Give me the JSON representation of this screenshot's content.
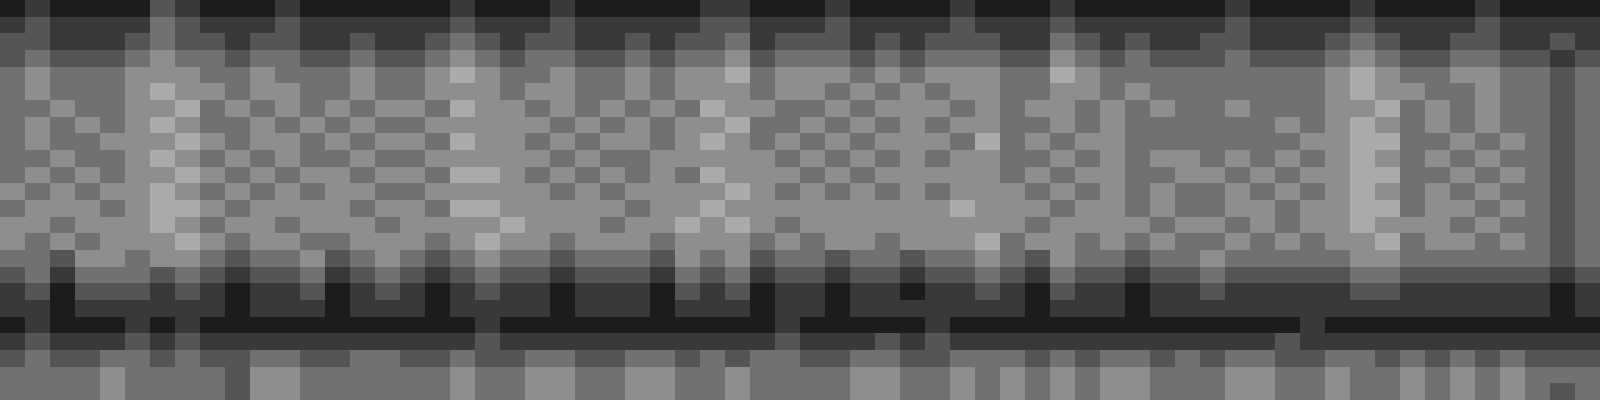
{
  "chart_data": {
    "type": "heatmap",
    "tick_labels": false,
    "color": "#ffffff",
    "color_range": [
      0,
      9
    ],
    "values": [
      [
        1,
        2,
        1,
        1,
        1,
        1,
        3,
        2,
        1,
        1,
        1,
        2,
        1,
        1,
        1,
        1,
        1,
        1,
        2,
        1,
        1,
        1,
        2,
        1,
        1,
        1,
        1,
        1,
        2,
        2,
        1,
        1,
        1,
        2,
        1,
        1,
        1,
        1,
        2,
        1,
        1,
        1,
        2,
        1,
        1,
        1,
        1,
        1,
        1,
        2,
        1,
        1,
        1,
        1,
        2,
        1,
        1,
        1,
        1,
        2,
        1,
        1,
        1,
        1
      ],
      [
        2,
        3,
        2,
        2,
        2,
        2,
        4,
        3,
        2,
        2,
        2,
        3,
        2,
        2,
        2,
        2,
        2,
        2,
        3,
        2,
        2,
        2,
        3,
        2,
        2,
        2,
        2,
        2,
        3,
        3,
        2,
        2,
        2,
        3,
        2,
        2,
        2,
        2,
        3,
        2,
        2,
        2,
        3,
        2,
        2,
        2,
        2,
        2,
        2,
        3,
        2,
        2,
        2,
        2,
        3,
        2,
        2,
        2,
        2,
        3,
        2,
        2,
        2,
        2
      ],
      [
        3,
        3,
        2,
        2,
        2,
        3,
        4,
        3,
        3,
        2,
        3,
        3,
        2,
        2,
        3,
        2,
        2,
        3,
        4,
        3,
        2,
        3,
        3,
        2,
        2,
        3,
        2,
        3,
        3,
        4,
        2,
        3,
        3,
        3,
        2,
        3,
        2,
        3,
        3,
        3,
        2,
        2,
        4,
        3,
        2,
        3,
        2,
        2,
        3,
        3,
        2,
        2,
        2,
        3,
        4,
        3,
        2,
        2,
        3,
        3,
        2,
        2,
        3,
        2
      ],
      [
        3,
        4,
        3,
        3,
        3,
        4,
        5,
        4,
        4,
        3,
        4,
        4,
        3,
        3,
        4,
        3,
        3,
        4,
        5,
        4,
        3,
        4,
        4,
        3,
        3,
        4,
        3,
        4,
        4,
        5,
        3,
        4,
        4,
        4,
        3,
        4,
        3,
        4,
        4,
        4,
        3,
        3,
        5,
        4,
        3,
        4,
        3,
        3,
        3,
        4,
        3,
        3,
        3,
        4,
        5,
        4,
        3,
        3,
        4,
        4,
        3,
        3,
        2,
        3
      ],
      [
        4,
        5,
        4,
        4,
        4,
        5,
        5,
        5,
        4,
        4,
        5,
        4,
        4,
        4,
        5,
        4,
        4,
        5,
        6,
        5,
        4,
        4,
        5,
        4,
        4,
        5,
        4,
        5,
        5,
        6,
        4,
        5,
        5,
        5,
        4,
        5,
        4,
        5,
        5,
        5,
        4,
        4,
        6,
        5,
        4,
        4,
        4,
        4,
        4,
        4,
        4,
        4,
        4,
        5,
        6,
        5,
        4,
        4,
        5,
        5,
        4,
        4,
        3,
        4
      ],
      [
        4,
        5,
        4,
        4,
        4,
        5,
        6,
        5,
        5,
        4,
        5,
        5,
        4,
        4,
        5,
        4,
        4,
        5,
        5,
        5,
        4,
        5,
        5,
        4,
        4,
        5,
        4,
        5,
        5,
        5,
        4,
        5,
        5,
        4,
        5,
        4,
        5,
        4,
        5,
        5,
        4,
        4,
        5,
        5,
        4,
        5,
        4,
        4,
        4,
        4,
        4,
        4,
        4,
        5,
        6,
        5,
        5,
        4,
        4,
        5,
        4,
        4,
        3,
        4
      ],
      [
        4,
        4,
        5,
        4,
        4,
        5,
        5,
        6,
        4,
        5,
        4,
        5,
        4,
        5,
        4,
        5,
        5,
        4,
        6,
        5,
        5,
        4,
        5,
        4,
        5,
        4,
        5,
        4,
        6,
        5,
        5,
        4,
        4,
        5,
        4,
        5,
        5,
        5,
        4,
        5,
        4,
        5,
        5,
        4,
        5,
        4,
        5,
        4,
        4,
        5,
        4,
        4,
        4,
        5,
        5,
        6,
        4,
        5,
        4,
        5,
        4,
        4,
        3,
        4
      ],
      [
        4,
        5,
        4,
        5,
        4,
        5,
        6,
        5,
        4,
        4,
        5,
        4,
        5,
        4,
        5,
        4,
        4,
        5,
        5,
        5,
        5,
        5,
        4,
        5,
        4,
        5,
        4,
        5,
        5,
        6,
        4,
        4,
        5,
        4,
        5,
        4,
        5,
        4,
        5,
        5,
        4,
        4,
        5,
        4,
        5,
        4,
        4,
        4,
        4,
        4,
        4,
        5,
        4,
        5,
        6,
        5,
        4,
        5,
        4,
        5,
        4,
        4,
        3,
        4
      ],
      [
        4,
        5,
        4,
        4,
        5,
        5,
        5,
        6,
        5,
        4,
        5,
        5,
        4,
        5,
        4,
        5,
        5,
        4,
        6,
        5,
        5,
        4,
        5,
        4,
        5,
        5,
        4,
        5,
        6,
        5,
        4,
        5,
        4,
        5,
        4,
        5,
        5,
        5,
        4,
        6,
        4,
        5,
        4,
        5,
        5,
        4,
        4,
        4,
        4,
        4,
        4,
        4,
        5,
        5,
        6,
        6,
        4,
        4,
        5,
        4,
        5,
        4,
        3,
        4
      ],
      [
        4,
        4,
        5,
        4,
        4,
        5,
        6,
        5,
        4,
        5,
        4,
        5,
        4,
        4,
        5,
        4,
        4,
        5,
        5,
        5,
        5,
        5,
        4,
        5,
        4,
        4,
        5,
        5,
        5,
        5,
        5,
        4,
        5,
        4,
        5,
        4,
        5,
        4,
        5,
        5,
        4,
        4,
        5,
        4,
        5,
        4,
        5,
        5,
        4,
        5,
        4,
        5,
        4,
        5,
        6,
        5,
        4,
        5,
        4,
        5,
        4,
        4,
        3,
        4
      ],
      [
        4,
        5,
        4,
        5,
        4,
        5,
        5,
        6,
        5,
        4,
        5,
        4,
        5,
        5,
        4,
        5,
        5,
        4,
        6,
        6,
        5,
        4,
        5,
        4,
        5,
        4,
        5,
        4,
        6,
        5,
        5,
        5,
        4,
        5,
        4,
        5,
        5,
        5,
        5,
        5,
        4,
        5,
        4,
        5,
        5,
        4,
        4,
        5,
        5,
        4,
        5,
        4,
        5,
        5,
        6,
        6,
        4,
        4,
        5,
        4,
        5,
        4,
        3,
        4
      ],
      [
        5,
        4,
        5,
        4,
        5,
        5,
        6,
        5,
        4,
        5,
        4,
        5,
        4,
        5,
        5,
        4,
        4,
        5,
        5,
        5,
        5,
        5,
        4,
        5,
        4,
        5,
        5,
        5,
        5,
        6,
        5,
        4,
        5,
        4,
        5,
        4,
        5,
        4,
        5,
        5,
        5,
        4,
        5,
        4,
        5,
        4,
        5,
        4,
        4,
        5,
        4,
        5,
        4,
        5,
        6,
        5,
        4,
        5,
        4,
        5,
        4,
        4,
        3,
        4
      ],
      [
        4,
        5,
        5,
        5,
        4,
        5,
        6,
        6,
        5,
        4,
        5,
        5,
        5,
        5,
        4,
        5,
        5,
        4,
        6,
        6,
        5,
        5,
        5,
        5,
        5,
        4,
        5,
        5,
        6,
        5,
        5,
        5,
        5,
        5,
        5,
        5,
        5,
        5,
        6,
        5,
        5,
        5,
        4,
        5,
        5,
        4,
        5,
        4,
        4,
        5,
        5,
        4,
        5,
        5,
        6,
        6,
        4,
        5,
        5,
        4,
        5,
        4,
        3,
        4
      ],
      [
        5,
        5,
        4,
        5,
        5,
        5,
        6,
        5,
        4,
        5,
        5,
        4,
        5,
        5,
        5,
        4,
        5,
        5,
        5,
        5,
        6,
        5,
        5,
        5,
        4,
        5,
        5,
        6,
        5,
        6,
        5,
        4,
        5,
        5,
        5,
        5,
        5,
        5,
        5,
        5,
        5,
        4,
        5,
        5,
        5,
        5,
        4,
        5,
        5,
        4,
        5,
        4,
        5,
        5,
        6,
        5,
        5,
        5,
        4,
        5,
        4,
        4,
        3,
        4
      ],
      [
        5,
        4,
        5,
        4,
        5,
        5,
        5,
        6,
        5,
        4,
        5,
        5,
        4,
        4,
        5,
        5,
        5,
        4,
        5,
        6,
        5,
        5,
        4,
        5,
        5,
        5,
        4,
        5,
        5,
        5,
        4,
        5,
        4,
        5,
        5,
        4,
        5,
        5,
        5,
        6,
        4,
        5,
        5,
        4,
        5,
        4,
        5,
        4,
        4,
        5,
        4,
        5,
        4,
        5,
        5,
        6,
        4,
        5,
        5,
        4,
        5,
        4,
        3,
        4
      ],
      [
        4,
        4,
        3,
        5,
        5,
        4,
        5,
        5,
        4,
        3,
        4,
        4,
        5,
        3,
        4,
        5,
        4,
        3,
        4,
        5,
        4,
        4,
        3,
        4,
        4,
        4,
        3,
        5,
        4,
        5,
        3,
        4,
        4,
        3,
        4,
        4,
        3,
        4,
        4,
        5,
        4,
        3,
        5,
        4,
        4,
        3,
        4,
        4,
        5,
        4,
        4,
        4,
        4,
        4,
        5,
        5,
        4,
        4,
        4,
        4,
        4,
        4,
        3,
        4
      ],
      [
        3,
        4,
        2,
        4,
        4,
        4,
        3,
        4,
        3,
        2,
        3,
        3,
        4,
        2,
        3,
        4,
        3,
        2,
        3,
        4,
        3,
        3,
        2,
        3,
        3,
        3,
        2,
        4,
        3,
        4,
        2,
        3,
        3,
        2,
        3,
        3,
        2,
        3,
        3,
        4,
        3,
        2,
        4,
        3,
        3,
        2,
        3,
        3,
        4,
        3,
        3,
        3,
        3,
        3,
        4,
        4,
        3,
        3,
        3,
        3,
        3,
        3,
        2,
        3
      ],
      [
        2,
        3,
        1,
        3,
        3,
        3,
        2,
        3,
        2,
        1,
        2,
        2,
        3,
        1,
        2,
        3,
        2,
        1,
        2,
        3,
        2,
        2,
        1,
        2,
        2,
        2,
        1,
        3,
        2,
        3,
        1,
        2,
        2,
        1,
        2,
        2,
        1,
        2,
        2,
        3,
        2,
        1,
        3,
        2,
        2,
        1,
        2,
        2,
        3,
        2,
        2,
        2,
        2,
        2,
        3,
        3,
        2,
        2,
        2,
        2,
        2,
        2,
        1,
        2
      ],
      [
        2,
        2,
        1,
        2,
        2,
        2,
        2,
        2,
        2,
        1,
        2,
        2,
        2,
        1,
        2,
        2,
        2,
        1,
        2,
        2,
        2,
        2,
        1,
        2,
        2,
        2,
        1,
        2,
        2,
        2,
        1,
        2,
        2,
        1,
        2,
        2,
        2,
        2,
        2,
        2,
        2,
        1,
        2,
        2,
        2,
        1,
        2,
        2,
        2,
        2,
        2,
        2,
        2,
        2,
        2,
        2,
        2,
        2,
        2,
        2,
        2,
        2,
        1,
        2
      ],
      [
        1,
        2,
        1,
        1,
        1,
        2,
        1,
        2,
        1,
        1,
        1,
        1,
        1,
        1,
        1,
        1,
        1,
        1,
        1,
        2,
        1,
        1,
        1,
        1,
        1,
        1,
        1,
        1,
        1,
        1,
        1,
        2,
        1,
        1,
        1,
        1,
        1,
        2,
        1,
        1,
        1,
        1,
        1,
        1,
        1,
        1,
        1,
        1,
        1,
        1,
        1,
        1,
        2,
        1,
        1,
        1,
        1,
        1,
        1,
        1,
        1,
        1,
        1,
        1
      ],
      [
        2,
        3,
        2,
        2,
        2,
        3,
        2,
        3,
        2,
        2,
        2,
        2,
        2,
        2,
        2,
        2,
        2,
        2,
        2,
        3,
        2,
        2,
        2,
        2,
        2,
        2,
        2,
        2,
        2,
        2,
        2,
        3,
        2,
        2,
        2,
        3,
        2,
        3,
        2,
        2,
        2,
        2,
        2,
        2,
        2,
        2,
        2,
        2,
        2,
        2,
        2,
        3,
        2,
        2,
        2,
        2,
        2,
        2,
        2,
        2,
        2,
        2,
        2,
        2
      ],
      [
        3,
        4,
        3,
        3,
        4,
        4,
        3,
        4,
        3,
        3,
        4,
        4,
        3,
        3,
        4,
        4,
        3,
        3,
        4,
        3,
        3,
        4,
        4,
        3,
        3,
        4,
        4,
        3,
        4,
        3,
        4,
        4,
        3,
        3,
        4,
        4,
        3,
        3,
        4,
        4,
        4,
        3,
        4,
        3,
        4,
        4,
        3,
        4,
        3,
        4,
        4,
        3,
        3,
        4,
        4,
        3,
        4,
        3,
        4,
        3,
        4,
        3,
        3,
        3
      ],
      [
        4,
        4,
        4,
        4,
        5,
        4,
        4,
        4,
        4,
        3,
        5,
        5,
        4,
        4,
        4,
        4,
        4,
        4,
        5,
        4,
        4,
        5,
        5,
        4,
        4,
        5,
        5,
        4,
        4,
        5,
        4,
        4,
        4,
        4,
        5,
        5,
        4,
        4,
        5,
        4,
        5,
        4,
        5,
        4,
        5,
        5,
        4,
        4,
        4,
        5,
        5,
        4,
        4,
        5,
        4,
        4,
        5,
        4,
        5,
        4,
        5,
        4,
        4,
        4
      ],
      [
        4,
        4,
        4,
        4,
        5,
        4,
        4,
        4,
        4,
        3,
        5,
        5,
        4,
        4,
        4,
        4,
        4,
        4,
        5,
        4,
        4,
        5,
        5,
        4,
        4,
        5,
        5,
        4,
        4,
        5,
        4,
        4,
        4,
        4,
        5,
        5,
        4,
        4,
        5,
        4,
        5,
        4,
        5,
        4,
        5,
        5,
        4,
        4,
        4,
        5,
        5,
        4,
        4,
        5,
        4,
        4,
        5,
        4,
        5,
        4,
        5,
        4,
        3,
        4
      ]
    ]
  }
}
